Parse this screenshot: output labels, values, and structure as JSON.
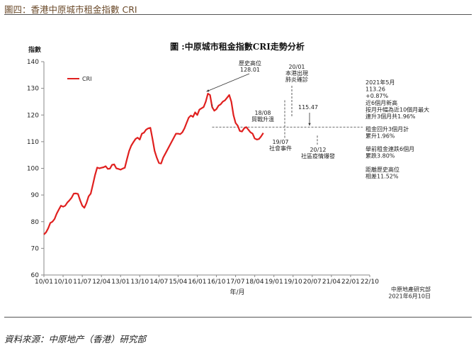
{
  "figure_caption": "圖四：香港中原城市租金指數 CRI",
  "source": "資料來源：中原地产（香港）研究部",
  "chart_data": {
    "type": "line",
    "title": "圖 :中原城市租金指數CRI走勢分析",
    "xlabel": "年/月",
    "ylabel": "指數",
    "ylim": [
      60,
      140
    ],
    "yticks": [
      60,
      70,
      80,
      90,
      100,
      110,
      120,
      130,
      140
    ],
    "xtick_labels": [
      "10/01",
      "10/10",
      "11/07",
      "12/04",
      "13/01",
      "13/10",
      "14/07",
      "15/04",
      "16/01",
      "16/10",
      "17/07",
      "18/04",
      "19/01",
      "19/10",
      "20/07",
      "21/04",
      "22/01",
      "22/10"
    ],
    "grid": false,
    "legend": "top-left",
    "series": [
      {
        "name": "CRI",
        "color": "#e0201f",
        "values": [
          75.2,
          76.0,
          77.5,
          79.5,
          80.0,
          81.0,
          83.0,
          84.5,
          86.0,
          85.6,
          86.0,
          87.2,
          88.0,
          89.0,
          90.5,
          90.6,
          90.4,
          88.0,
          86.0,
          85.2,
          87.0,
          89.5,
          90.5,
          94.0,
          97.5,
          100.3,
          100.0,
          100.2,
          100.4,
          100.8,
          99.8,
          99.9,
          101.3,
          101.5,
          100.0,
          99.8,
          99.5,
          99.9,
          100.2,
          103.5,
          106.5,
          108.5,
          109.8,
          111.0,
          111.5,
          110.8,
          113.0,
          113.4,
          114.5,
          115.0,
          115.2,
          111.0,
          106.5,
          104.0,
          102.0,
          101.8,
          104.0,
          105.5,
          107.0,
          108.5,
          110.0,
          111.5,
          113.0,
          113.0,
          112.8,
          113.5,
          115.0,
          117.0,
          119.0,
          119.8,
          119.3,
          121.0,
          120.0,
          122.0,
          122.5,
          123.0,
          125.0,
          128.01,
          127.5,
          123.0,
          121.6,
          122.2,
          123.5,
          124.0,
          125.0,
          125.5,
          126.5,
          127.5,
          125.0,
          120.0,
          117.0,
          116.0,
          114.0,
          113.8,
          115.0,
          115.47,
          114.5,
          113.5,
          113.0,
          111.2,
          110.8,
          111.0,
          112.0,
          113.26
        ]
      }
    ],
    "reference_line": 115.47,
    "annotations": [
      {
        "id": "peak",
        "lines": [
          "歷史高位",
          "128.01"
        ]
      },
      {
        "id": "p1808",
        "lines": [
          "18/08",
          "貿戰升溫"
        ]
      },
      {
        "id": "p1907",
        "lines": [
          "19/07",
          "社會事件"
        ]
      },
      {
        "id": "p2001",
        "lines": [
          "20/01",
          "本港出現",
          "肺炎確診"
        ]
      },
      {
        "id": "p2012",
        "lines": [
          "20/12",
          "社區疫情爆發"
        ]
      },
      {
        "id": "level",
        "lines": [
          "115.47"
        ]
      }
    ],
    "side_notes": [
      [
        "2021年5月",
        "113.26",
        "+0.87%",
        "近6個月新高",
        "按月升幅為近10個月最大",
        "連升3個月共1.96%"
      ],
      [
        "租金回升3個月計",
        "累升1.96%"
      ],
      [
        "舉前租金連跌6個月",
        "累跌3.80%"
      ],
      [
        "距離歷史高位",
        "相差11.52%"
      ]
    ],
    "credit": [
      "中原地產研究部",
      "2021年6月10日"
    ]
  }
}
